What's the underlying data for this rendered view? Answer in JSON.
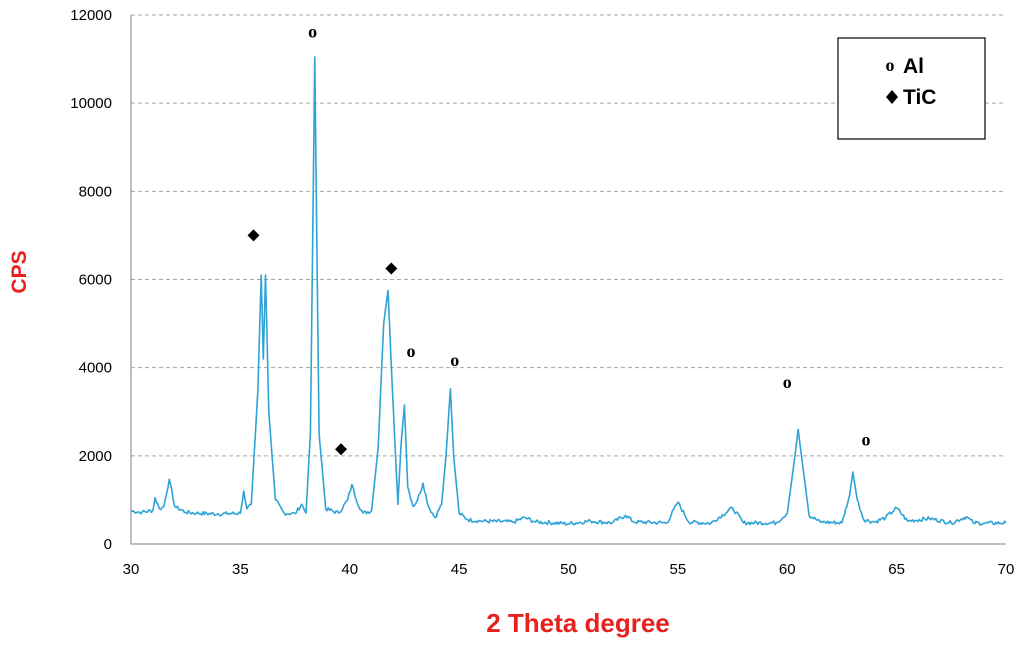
{
  "chart_data": {
    "type": "line",
    "xlabel": "2 Theta degree",
    "ylabel": "CPS",
    "xlim": [
      30,
      70
    ],
    "ylim": [
      0,
      12000
    ],
    "xticks": [
      "30",
      "35",
      "40",
      "45",
      "50",
      "55",
      "60",
      "65",
      "70"
    ],
    "yticks": [
      "0",
      "2000",
      "4000",
      "6000",
      "8000",
      "10000",
      "12000"
    ],
    "grid": "horizontal dashed",
    "colors": {
      "line": "#2fa3d6",
      "axis_title": "#e8201e",
      "grid": "#a6a6a6"
    },
    "series": [
      {
        "color": "#2fa3d6",
        "x": [
          30.0,
          30.5,
          31.0,
          31.1,
          31.3,
          31.5,
          31.75,
          32.0,
          32.5,
          33.0,
          34.0,
          35.0,
          35.15,
          35.3,
          35.5,
          35.8,
          35.95,
          36.05,
          36.15,
          36.3,
          36.6,
          37.0,
          37.5,
          37.8,
          38.0,
          38.2,
          38.32,
          38.4,
          38.48,
          38.6,
          38.9,
          39.5,
          39.9,
          40.1,
          40.3,
          40.6,
          41.0,
          41.3,
          41.55,
          41.75,
          41.95,
          42.2,
          42.35,
          42.5,
          42.65,
          42.9,
          43.1,
          43.35,
          43.6,
          43.9,
          44.2,
          44.4,
          44.6,
          44.75,
          45.0,
          45.4,
          46.0,
          47.5,
          48.0,
          48.5,
          50.0,
          51.0,
          52.0,
          52.6,
          53.0,
          54.5,
          55.0,
          55.5,
          56.5,
          57.5,
          58.0,
          59.5,
          60.0,
          60.3,
          60.5,
          60.7,
          61.0,
          61.5,
          62.5,
          62.85,
          63.0,
          63.2,
          63.5,
          64.0,
          64.5,
          65.0,
          65.5,
          66.5,
          67.5,
          68.2,
          68.5,
          69.0,
          70.0
        ],
        "values": [
          750,
          720,
          760,
          1050,
          800,
          850,
          1470,
          850,
          720,
          700,
          680,
          700,
          1200,
          800,
          900,
          3500,
          6100,
          4200,
          6100,
          3000,
          1000,
          700,
          690,
          900,
          700,
          2500,
          7500,
          11050,
          7500,
          2500,
          800,
          700,
          1000,
          1350,
          1000,
          700,
          750,
          2200,
          5000,
          5750,
          3500,
          900,
          2300,
          3150,
          1300,
          850,
          1000,
          1380,
          850,
          600,
          900,
          2000,
          3520,
          2000,
          700,
          550,
          520,
          500,
          600,
          500,
          460,
          520,
          480,
          650,
          500,
          480,
          950,
          500,
          470,
          820,
          480,
          480,
          700,
          1800,
          2600,
          1800,
          650,
          500,
          480,
          1100,
          1630,
          1000,
          550,
          500,
          600,
          820,
          520,
          580,
          480,
          620,
          480,
          470,
          480
        ]
      }
    ],
    "annotations": [
      {
        "symbol": "o",
        "x": 38.3,
        "y": 11600
      },
      {
        "symbol": "o",
        "x": 42.8,
        "y": 4350
      },
      {
        "symbol": "o",
        "x": 44.8,
        "y": 4150
      },
      {
        "symbol": "o",
        "x": 60.0,
        "y": 3650
      },
      {
        "symbol": "o",
        "x": 63.6,
        "y": 2350
      },
      {
        "symbol": "diamond",
        "x": 35.6,
        "y": 7000
      },
      {
        "symbol": "diamond",
        "x": 39.6,
        "y": 2150
      },
      {
        "symbol": "diamond",
        "x": 41.9,
        "y": 6250
      }
    ],
    "legend": {
      "position": "top-right",
      "entries": [
        {
          "symbol": "o",
          "label": "Al"
        },
        {
          "symbol": "diamond",
          "label": "TiC"
        }
      ]
    }
  }
}
